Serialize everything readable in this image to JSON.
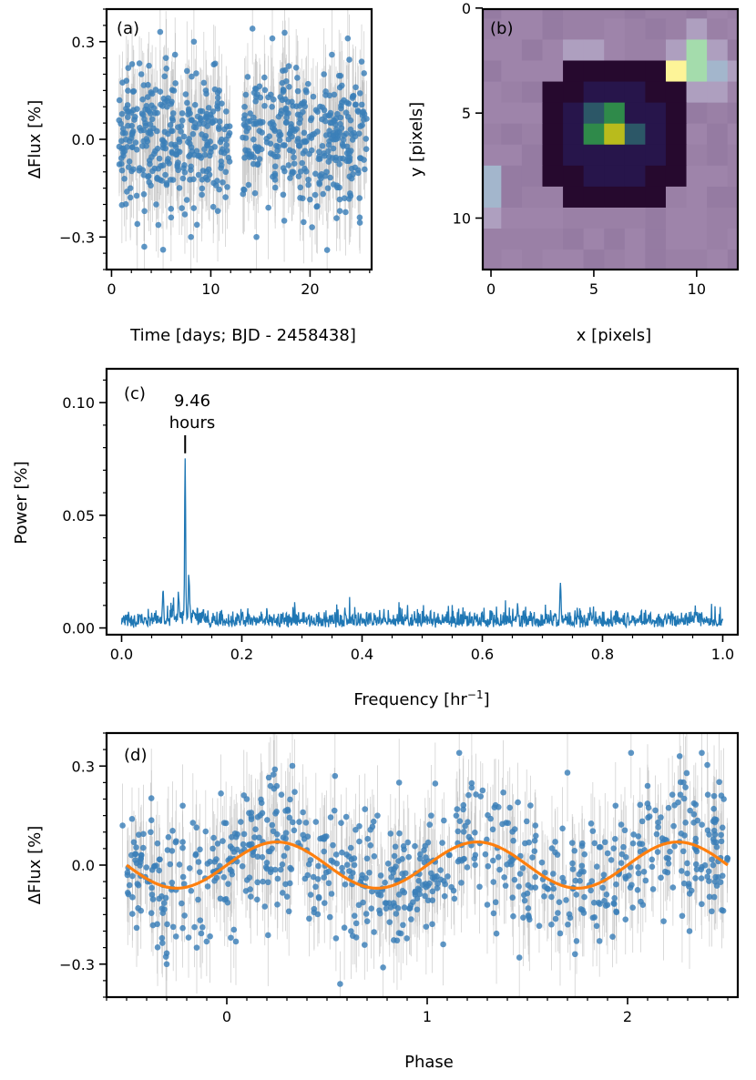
{
  "chart_data": [
    {
      "panel": "(a)",
      "type": "scatter",
      "xlabel": "Time [days; BJD - 2458438]",
      "ylabel": "ΔFlux [%]",
      "xlim": [
        -0.5,
        26.2
      ],
      "ylim": [
        -0.4,
        0.4
      ],
      "xticks": [
        0,
        10,
        20
      ],
      "yticks": [
        -0.3,
        0.0,
        0.3
      ],
      "ytick_labels": [
        "−0.3",
        "0.0",
        "0.3"
      ],
      "series": [
        {
          "marker_color": "#3b7fb8",
          "errorbar_color": "#bdbdbd",
          "segments": [
            [
              0.7,
              12.0
            ],
            [
              13.2,
              25.7
            ]
          ],
          "points": [
            [
              0.8,
              0.12
            ],
            [
              1.2,
              -0.05
            ],
            [
              1.5,
              0.18
            ],
            [
              1.9,
              -0.15
            ],
            [
              2.3,
              0.06
            ],
            [
              2.6,
              -0.26
            ],
            [
              3.0,
              0.2
            ],
            [
              3.3,
              -0.33
            ],
            [
              3.7,
              0.02
            ],
            [
              4.1,
              0.14
            ],
            [
              4.5,
              -0.2
            ],
            [
              4.9,
              0.33
            ],
            [
              5.2,
              -0.08
            ],
            [
              5.6,
              0.1
            ],
            [
              6.0,
              -0.24
            ],
            [
              6.4,
              0.26
            ],
            [
              6.8,
              0.0
            ],
            [
              7.2,
              -0.12
            ],
            [
              7.6,
              0.21
            ],
            [
              8.0,
              -0.3
            ],
            [
              8.3,
              0.3
            ],
            [
              8.7,
              0.07
            ],
            [
              9.1,
              -0.17
            ],
            [
              9.5,
              0.15
            ],
            [
              9.9,
              -0.05
            ],
            [
              10.3,
              0.23
            ],
            [
              10.7,
              -0.22
            ],
            [
              11.1,
              0.11
            ],
            [
              11.5,
              -0.1
            ],
            [
              11.9,
              0.04
            ],
            [
              13.4,
              0.1
            ],
            [
              13.8,
              -0.14
            ],
            [
              14.2,
              0.34
            ],
            [
              14.6,
              -0.3
            ],
            [
              15.0,
              0.05
            ],
            [
              15.4,
              0.19
            ],
            [
              15.8,
              -0.21
            ],
            [
              16.2,
              0.31
            ],
            [
              16.6,
              -0.02
            ],
            [
              17.0,
              0.13
            ],
            [
              17.4,
              -0.25
            ],
            [
              17.8,
              0.08
            ],
            [
              18.2,
              -0.1
            ],
            [
              18.6,
              0.22
            ],
            [
              19.0,
              -0.18
            ],
            [
              19.4,
              0.02
            ],
            [
              19.8,
              0.17
            ],
            [
              20.2,
              -0.27
            ],
            [
              20.6,
              0.09
            ],
            [
              21.0,
              -0.06
            ],
            [
              21.4,
              0.2
            ],
            [
              21.8,
              -0.15
            ],
            [
              22.2,
              0.26
            ],
            [
              22.6,
              0.0
            ],
            [
              23.0,
              -0.22
            ],
            [
              23.4,
              0.12
            ],
            [
              23.8,
              0.31
            ],
            [
              24.2,
              -0.09
            ],
            [
              24.6,
              0.16
            ],
            [
              25.0,
              -0.24
            ],
            [
              25.4,
              0.06
            ]
          ]
        }
      ]
    },
    {
      "panel": "(b)",
      "type": "heatmap",
      "xlabel": "x [pixels]",
      "ylabel": "y [pixels]",
      "xticks": [
        0,
        5,
        10
      ],
      "yticks": [
        0,
        5,
        10
      ],
      "n_cols": 13,
      "n_rows": 13,
      "colors": {
        "background": "#9a80a6",
        "dark": "#26092e",
        "mid_dark": "#27154b",
        "teal": "#2c5767",
        "green": "#2f8a4a",
        "yellow": "#b9bb1c",
        "bright_yellow": "#fdf498",
        "bright_green": "#a4dcac",
        "light_blue": "#a3b6cc",
        "lavender": "#ae9fbf"
      },
      "grid": [
        [
          "bg",
          "bg",
          "bg",
          "bg",
          "bg",
          "bg",
          "bg",
          "bg",
          "bg",
          "bg",
          "bg",
          "bg",
          "bg"
        ],
        [
          "bg",
          "bg",
          "bg",
          "bg",
          "bg",
          "bg",
          "bg",
          "bg",
          "bg",
          "bg",
          "lav",
          "bg",
          "bg"
        ],
        [
          "bg",
          "bg",
          "bg",
          "bg",
          "lav",
          "lav",
          "bg",
          "bg",
          "bg",
          "lav",
          "bgr",
          "lav",
          "bg"
        ],
        [
          "bg",
          "bg",
          "bg",
          "bg",
          "dark",
          "dark",
          "dark",
          "dark",
          "dark",
          "byel",
          "bgr",
          "lb",
          "lav"
        ],
        [
          "bg",
          "bg",
          "bg",
          "dark",
          "dark",
          "md",
          "md",
          "md",
          "dark",
          "dark",
          "lav",
          "lav",
          "bg"
        ],
        [
          "bg",
          "bg",
          "bg",
          "dark",
          "md",
          "teal",
          "green",
          "md",
          "md",
          "dark",
          "bg",
          "bg",
          "bg"
        ],
        [
          "bg",
          "bg",
          "bg",
          "dark",
          "md",
          "green",
          "yel",
          "teal",
          "md",
          "dark",
          "bg",
          "bg",
          "bg"
        ],
        [
          "bg",
          "bg",
          "bg",
          "dark",
          "md",
          "md",
          "md",
          "md",
          "md",
          "dark",
          "bg",
          "bg",
          "bg"
        ],
        [
          "lb",
          "bg",
          "bg",
          "dark",
          "dark",
          "md",
          "md",
          "md",
          "dark",
          "dark",
          "bg",
          "bg",
          "bg"
        ],
        [
          "lb",
          "bg",
          "bg",
          "bg",
          "dark",
          "dark",
          "dark",
          "dark",
          "dark",
          "bg",
          "bg",
          "bg",
          "bg"
        ],
        [
          "lav",
          "bg",
          "bg",
          "bg",
          "bg",
          "bg",
          "bg",
          "bg",
          "bg",
          "bg",
          "bg",
          "bg",
          "bg"
        ],
        [
          "bg",
          "bg",
          "bg",
          "bg",
          "bg",
          "bg",
          "bg",
          "bg",
          "bg",
          "bg",
          "bg",
          "bg",
          "bg"
        ],
        [
          "bg",
          "bg",
          "bg",
          "bg",
          "bg",
          "bg",
          "bg",
          "bg",
          "bg",
          "bg",
          "bg",
          "bg",
          "bg"
        ]
      ]
    },
    {
      "panel": "(c)",
      "type": "line",
      "xlabel": "Frequency [hr",
      "xlabel_sup": "−1",
      "xlabel_end": "]",
      "ylabel": "Power [%]",
      "xlim": [
        -0.025,
        1.025
      ],
      "ylim": [
        -0.003,
        0.115
      ],
      "xticks": [
        0.0,
        0.2,
        0.4,
        0.6,
        0.8,
        1.0
      ],
      "yticks": [
        0.0,
        0.05,
        0.1
      ],
      "ytick_labels": [
        "0.00",
        "0.05",
        "0.10"
      ],
      "annotation": {
        "line1": "9.46",
        "line2": "hours",
        "x": 0.1057,
        "y_marker": 0.0775
      },
      "series": [
        {
          "color": "#1f77b4",
          "noise_level": 0.004,
          "peaks": [
            [
              0.069,
              0.017
            ],
            [
              0.095,
              0.013
            ],
            [
              0.1057,
              0.072
            ],
            [
              0.112,
              0.021
            ],
            [
              0.73,
              0.02
            ]
          ]
        }
      ]
    },
    {
      "panel": "(d)",
      "type": "scatter",
      "xlabel": "Phase",
      "ylabel": "ΔFlux [%]",
      "xlim": [
        -0.6,
        2.55
      ],
      "ylim": [
        -0.4,
        0.4
      ],
      "xticks": [
        0,
        1,
        2
      ],
      "yticks": [
        -0.3,
        0.0,
        0.3
      ],
      "ytick_labels": [
        "−0.3",
        "0.0",
        "0.3"
      ],
      "series": [
        {
          "name": "data",
          "marker_color": "#3b7fb8",
          "errorbar_color": "#bdbdbd",
          "points": [
            [
              -0.52,
              0.12
            ],
            [
              -0.45,
              -0.19
            ],
            [
              -0.38,
              0.1
            ],
            [
              -0.3,
              -0.3
            ],
            [
              -0.22,
              0.18
            ],
            [
              -0.15,
              -0.25
            ],
            [
              -0.07,
              0.05
            ],
            [
              0.02,
              -0.22
            ],
            [
              0.1,
              0.2
            ],
            [
              0.18,
              -0.05
            ],
            [
              0.24,
              0.29
            ],
            [
              0.31,
              -0.14
            ],
            [
              0.38,
              0.16
            ],
            [
              0.46,
              -0.1
            ],
            [
              0.54,
              0.27
            ],
            [
              0.62,
              -0.2
            ],
            [
              0.7,
              0.02
            ],
            [
              0.78,
              -0.31
            ],
            [
              0.86,
              0.25
            ],
            [
              0.94,
              -0.08
            ],
            [
              1.02,
              0.15
            ],
            [
              1.08,
              -0.24
            ],
            [
              1.16,
              0.34
            ],
            [
              1.22,
              0.06
            ],
            [
              1.3,
              -0.12
            ],
            [
              1.38,
              0.22
            ],
            [
              1.46,
              -0.28
            ],
            [
              1.54,
              0.12
            ],
            [
              1.62,
              -0.18
            ],
            [
              1.7,
              0.28
            ],
            [
              1.78,
              -0.02
            ],
            [
              1.86,
              -0.23
            ],
            [
              1.94,
              0.18
            ],
            [
              2.02,
              -0.06
            ],
            [
              2.1,
              0.24
            ],
            [
              2.18,
              -0.17
            ],
            [
              2.26,
              0.33
            ],
            [
              2.34,
              0.08
            ],
            [
              2.42,
              -0.14
            ],
            [
              2.48,
              0.2
            ]
          ]
        },
        {
          "name": "model",
          "color": "#ff7f0e",
          "amplitude": 0.07,
          "x_range": [
            -0.5,
            2.5
          ]
        }
      ]
    }
  ]
}
